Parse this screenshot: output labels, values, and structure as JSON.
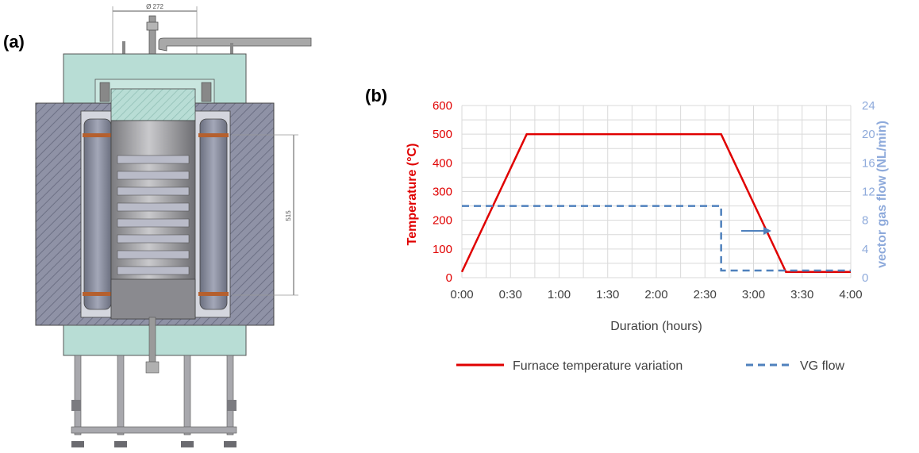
{
  "panel_a": {
    "label": "(a)",
    "dim_diameter": "Ø 272",
    "dim_height": "515"
  },
  "panel_b": {
    "label": "(b)"
  },
  "colors": {
    "temperature": "#e00000",
    "vg_flow": "#4f81bd",
    "right_axis_text": "#8eaadb",
    "grid": "#d9d9d9",
    "furnace_teal": "#b8ddd5",
    "furnace_gray": "#8f92a6"
  },
  "chart_data": {
    "type": "line",
    "xlabel": "Duration (hours)",
    "ylabel_left": "Temperature (°C)",
    "ylabel_right": "vector gas flow (NL/min)",
    "x_ticks": [
      "0:00",
      "0:30",
      "1:00",
      "1:30",
      "2:00",
      "2:30",
      "3:00",
      "3:30",
      "4:00"
    ],
    "ylim_left": [
      0,
      600
    ],
    "y_ticks_left": [
      0,
      100,
      200,
      300,
      400,
      500,
      600
    ],
    "ylim_right": [
      0,
      24
    ],
    "y_ticks_right": [
      0,
      4,
      8,
      12,
      16,
      20,
      24
    ],
    "grid": true,
    "legend_position": "bottom",
    "series": [
      {
        "name": "Furnace temperature variation",
        "axis": "left",
        "style": "solid",
        "x_minutes": [
          0,
          40,
          160,
          200,
          240
        ],
        "y": [
          20,
          500,
          500,
          20,
          20
        ]
      },
      {
        "name": "VG flow",
        "axis": "right",
        "style": "dashed",
        "x_minutes": [
          0,
          160,
          160,
          240
        ],
        "y": [
          10,
          10,
          1,
          1
        ]
      }
    ]
  }
}
